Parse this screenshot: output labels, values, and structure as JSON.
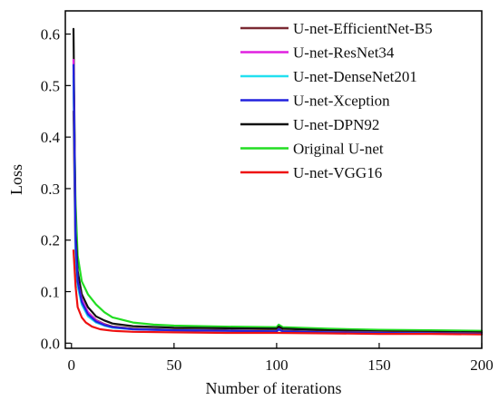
{
  "chart_data": {
    "type": "line",
    "title": "",
    "xlabel": "Number of iterations",
    "ylabel": "Loss",
    "xlim": [
      -3,
      200
    ],
    "ylim": [
      -0.01,
      0.645
    ],
    "xticks": [
      0,
      50,
      100,
      150,
      200
    ],
    "yticks": [
      0.0,
      0.1,
      0.2,
      0.3,
      0.4,
      0.5,
      0.6
    ],
    "ytick_labels": [
      "0.0",
      "0.1",
      "0.2",
      "0.3",
      "0.4",
      "0.5",
      "0.6"
    ],
    "grid": false,
    "legend_position": "top-right",
    "series": [
      {
        "name": "U-net-EfficientNet-B5",
        "color": "#7b2a33",
        "x": [
          1,
          2,
          3,
          5,
          8,
          12,
          16,
          20,
          30,
          50,
          75,
          100,
          101,
          103,
          125,
          150,
          175,
          200
        ],
        "y": [
          0.45,
          0.16,
          0.11,
          0.08,
          0.06,
          0.045,
          0.037,
          0.032,
          0.028,
          0.026,
          0.025,
          0.024,
          0.028,
          0.024,
          0.022,
          0.021,
          0.02,
          0.019
        ]
      },
      {
        "name": "U-net-ResNet34",
        "color": "#e020e0",
        "x": [
          1,
          2,
          3,
          5,
          8,
          12,
          16,
          20,
          30,
          50,
          75,
          100,
          101,
          103,
          125,
          150,
          175,
          200
        ],
        "y": [
          0.55,
          0.19,
          0.12,
          0.085,
          0.06,
          0.044,
          0.036,
          0.031,
          0.027,
          0.025,
          0.024,
          0.023,
          0.027,
          0.023,
          0.021,
          0.02,
          0.019,
          0.018
        ]
      },
      {
        "name": "U-net-DenseNet201",
        "color": "#22e0f0",
        "x": [
          1,
          2,
          3,
          5,
          8,
          12,
          16,
          20,
          30,
          50,
          75,
          100,
          101,
          103,
          125,
          150,
          175,
          200
        ],
        "y": [
          0.52,
          0.18,
          0.11,
          0.075,
          0.052,
          0.04,
          0.034,
          0.03,
          0.027,
          0.025,
          0.024,
          0.023,
          0.026,
          0.023,
          0.021,
          0.02,
          0.019,
          0.018
        ]
      },
      {
        "name": "U-net-Xception",
        "color": "#2222dd",
        "x": [
          1,
          2,
          3,
          5,
          8,
          12,
          16,
          20,
          30,
          50,
          75,
          100,
          101,
          103,
          125,
          150,
          175,
          200
        ],
        "y": [
          0.54,
          0.2,
          0.12,
          0.08,
          0.056,
          0.042,
          0.035,
          0.031,
          0.027,
          0.025,
          0.024,
          0.023,
          0.027,
          0.023,
          0.021,
          0.02,
          0.019,
          0.018
        ]
      },
      {
        "name": "U-net-DPN92",
        "color": "#111111",
        "x": [
          1,
          2,
          3,
          5,
          8,
          12,
          16,
          20,
          30,
          50,
          75,
          100,
          101,
          103,
          125,
          150,
          175,
          200
        ],
        "y": [
          0.61,
          0.22,
          0.14,
          0.095,
          0.07,
          0.052,
          0.044,
          0.038,
          0.033,
          0.03,
          0.029,
          0.028,
          0.032,
          0.028,
          0.025,
          0.023,
          0.022,
          0.021
        ]
      },
      {
        "name": "Original U-net",
        "color": "#22dd22",
        "x": [
          1,
          2,
          3,
          5,
          8,
          12,
          16,
          20,
          30,
          40,
          50,
          75,
          100,
          101,
          103,
          125,
          150,
          175,
          200
        ],
        "y": [
          0.51,
          0.27,
          0.17,
          0.12,
          0.095,
          0.075,
          0.06,
          0.05,
          0.04,
          0.036,
          0.034,
          0.032,
          0.031,
          0.036,
          0.031,
          0.028,
          0.026,
          0.025,
          0.024
        ]
      },
      {
        "name": "U-net-VGG16",
        "color": "#ee1111",
        "x": [
          1,
          2,
          3,
          5,
          7,
          10,
          14,
          20,
          30,
          50,
          75,
          100,
          125,
          150,
          175,
          200
        ],
        "y": [
          0.18,
          0.11,
          0.07,
          0.05,
          0.04,
          0.032,
          0.027,
          0.024,
          0.022,
          0.021,
          0.02,
          0.02,
          0.019,
          0.018,
          0.018,
          0.017
        ]
      }
    ]
  }
}
